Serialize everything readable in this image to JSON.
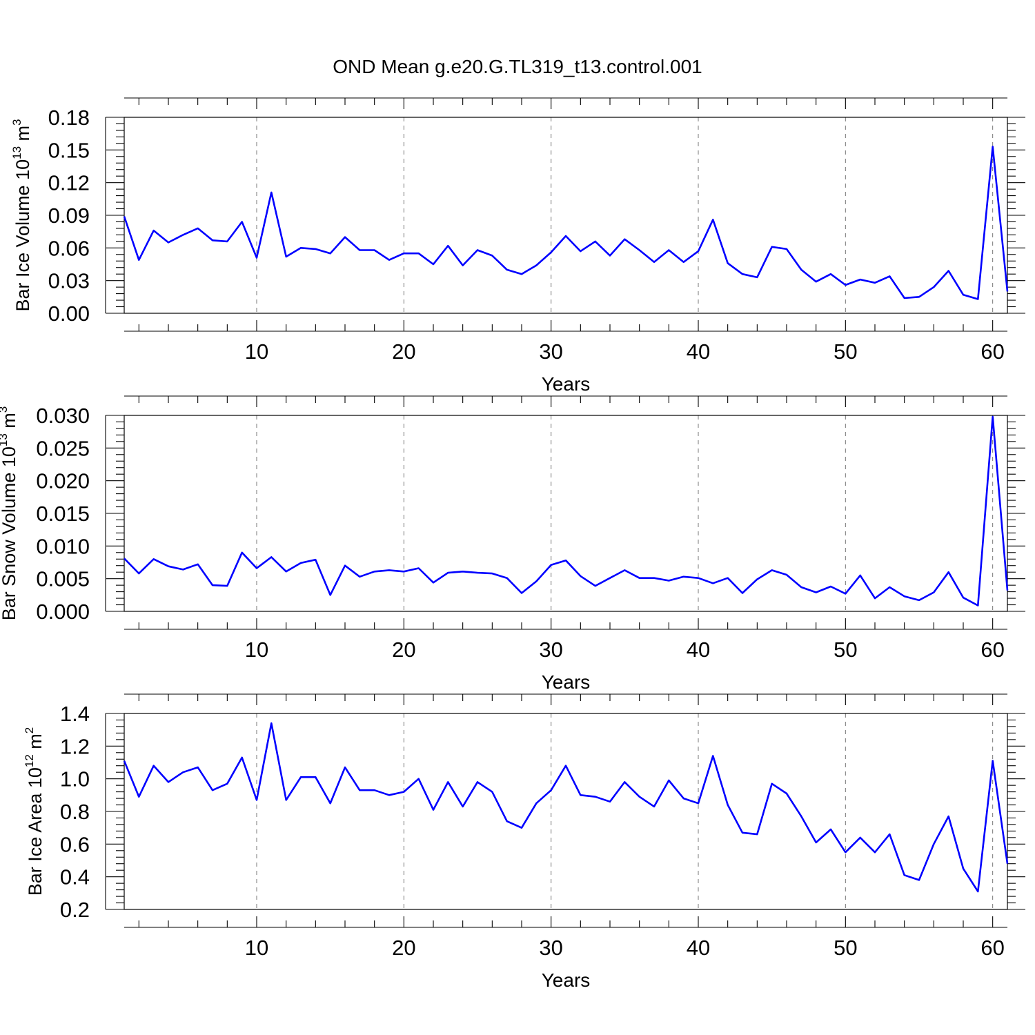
{
  "title": "OND Mean g.e20.G.TL319_t13.control.001",
  "line_color": "#0000ff",
  "chart_data": [
    {
      "type": "line",
      "ylabel_main": "Bar Ice Volume 10",
      "ylabel_exp": "13",
      "ylabel_unit": "m",
      "ylabel_unit_exp": "3",
      "xlabel": "Years",
      "xlim": [
        1,
        61
      ],
      "ylim": [
        0.0,
        0.18
      ],
      "xticks": [
        10,
        20,
        30,
        40,
        50,
        60
      ],
      "xtick_labels": [
        "10",
        "20",
        "30",
        "40",
        "50",
        "60"
      ],
      "yticks": [
        0.0,
        0.03,
        0.06,
        0.09,
        0.12,
        0.15,
        0.18
      ],
      "ytick_labels": [
        "0.00",
        "0.03",
        "0.06",
        "0.09",
        "0.12",
        "0.15",
        "0.18"
      ],
      "yminor_step": 0.006,
      "grid_x": [
        10,
        20,
        30,
        40,
        50,
        60
      ],
      "x": [
        1,
        2,
        3,
        4,
        5,
        6,
        7,
        8,
        9,
        10,
        11,
        12,
        13,
        14,
        15,
        16,
        17,
        18,
        19,
        20,
        21,
        22,
        23,
        24,
        25,
        26,
        27,
        28,
        29,
        30,
        31,
        32,
        33,
        34,
        35,
        36,
        37,
        38,
        39,
        40,
        41,
        42,
        43,
        44,
        45,
        46,
        47,
        48,
        49,
        50,
        51,
        52,
        53,
        54,
        55,
        56,
        57,
        58,
        59,
        60,
        61
      ],
      "values": [
        0.089,
        0.049,
        0.076,
        0.065,
        0.072,
        0.078,
        0.067,
        0.066,
        0.084,
        0.051,
        0.111,
        0.052,
        0.06,
        0.059,
        0.055,
        0.07,
        0.058,
        0.058,
        0.049,
        0.055,
        0.055,
        0.045,
        0.062,
        0.044,
        0.058,
        0.053,
        0.04,
        0.036,
        0.044,
        0.056,
        0.071,
        0.057,
        0.066,
        0.053,
        0.068,
        0.058,
        0.047,
        0.058,
        0.047,
        0.057,
        0.086,
        0.046,
        0.036,
        0.033,
        0.061,
        0.059,
        0.04,
        0.029,
        0.036,
        0.026,
        0.031,
        0.028,
        0.034,
        0.014,
        0.015,
        0.024,
        0.039,
        0.017,
        0.013,
        0.153,
        0.02
      ]
    },
    {
      "type": "line",
      "ylabel_main": "Bar Snow Volume 10",
      "ylabel_exp": "13",
      "ylabel_unit": "m",
      "ylabel_unit_exp": "3",
      "xlabel": "Years",
      "xlim": [
        1,
        61
      ],
      "ylim": [
        0.0,
        0.03
      ],
      "xticks": [
        10,
        20,
        30,
        40,
        50,
        60
      ],
      "xtick_labels": [
        "10",
        "20",
        "30",
        "40",
        "50",
        "60"
      ],
      "yticks": [
        0.0,
        0.005,
        0.01,
        0.015,
        0.02,
        0.025,
        0.03
      ],
      "ytick_labels": [
        "0.000",
        "0.005",
        "0.010",
        "0.015",
        "0.020",
        "0.025",
        "0.030"
      ],
      "yminor_step": 0.001,
      "grid_x": [
        10,
        20,
        30,
        40,
        50,
        60
      ],
      "x": [
        1,
        2,
        3,
        4,
        5,
        6,
        7,
        8,
        9,
        10,
        11,
        12,
        13,
        14,
        15,
        16,
        17,
        18,
        19,
        20,
        21,
        22,
        23,
        24,
        25,
        26,
        27,
        28,
        29,
        30,
        31,
        32,
        33,
        34,
        35,
        36,
        37,
        38,
        39,
        40,
        41,
        42,
        43,
        44,
        45,
        46,
        47,
        48,
        49,
        50,
        51,
        52,
        53,
        54,
        55,
        56,
        57,
        58,
        59,
        60,
        61
      ],
      "values": [
        0.0081,
        0.0058,
        0.008,
        0.0069,
        0.0064,
        0.0072,
        0.004,
        0.0039,
        0.009,
        0.0066,
        0.0083,
        0.0061,
        0.0074,
        0.0079,
        0.0025,
        0.007,
        0.0053,
        0.0061,
        0.0063,
        0.0061,
        0.0066,
        0.0044,
        0.0059,
        0.0061,
        0.0059,
        0.0058,
        0.0051,
        0.0028,
        0.0046,
        0.0071,
        0.0078,
        0.0054,
        0.0039,
        0.0051,
        0.0063,
        0.0051,
        0.0051,
        0.0047,
        0.0053,
        0.0051,
        0.0043,
        0.0051,
        0.0028,
        0.0049,
        0.0063,
        0.0056,
        0.0037,
        0.0029,
        0.0038,
        0.0027,
        0.0055,
        0.002,
        0.0037,
        0.0023,
        0.0017,
        0.0029,
        0.006,
        0.0021,
        0.0009,
        0.0298,
        0.0032
      ]
    },
    {
      "type": "line",
      "ylabel_main": "Bar Ice Area 10",
      "ylabel_exp": "12",
      "ylabel_unit": "m",
      "ylabel_unit_exp": "2",
      "xlabel": "Years",
      "xlim": [
        1,
        61
      ],
      "ylim": [
        0.2,
        1.4
      ],
      "xticks": [
        10,
        20,
        30,
        40,
        50,
        60
      ],
      "xtick_labels": [
        "10",
        "20",
        "30",
        "40",
        "50",
        "60"
      ],
      "yticks": [
        0.2,
        0.4,
        0.6,
        0.8,
        1.0,
        1.2,
        1.4
      ],
      "ytick_labels": [
        "0.2",
        "0.4",
        "0.6",
        "0.8",
        "1.0",
        "1.2",
        "1.4"
      ],
      "yminor_step": 0.04,
      "grid_x": [
        10,
        20,
        30,
        40,
        50,
        60
      ],
      "x": [
        1,
        2,
        3,
        4,
        5,
        6,
        7,
        8,
        9,
        10,
        11,
        12,
        13,
        14,
        15,
        16,
        17,
        18,
        19,
        20,
        21,
        22,
        23,
        24,
        25,
        26,
        27,
        28,
        29,
        30,
        31,
        32,
        33,
        34,
        35,
        36,
        37,
        38,
        39,
        40,
        41,
        42,
        43,
        44,
        45,
        46,
        47,
        48,
        49,
        50,
        51,
        52,
        53,
        54,
        55,
        56,
        57,
        58,
        59,
        60,
        61
      ],
      "values": [
        1.11,
        0.89,
        1.08,
        0.98,
        1.04,
        1.07,
        0.93,
        0.97,
        1.13,
        0.87,
        1.34,
        0.87,
        1.01,
        1.01,
        0.85,
        1.07,
        0.93,
        0.93,
        0.9,
        0.92,
        1.0,
        0.81,
        0.98,
        0.83,
        0.98,
        0.92,
        0.74,
        0.7,
        0.85,
        0.93,
        1.08,
        0.9,
        0.89,
        0.86,
        0.98,
        0.89,
        0.83,
        0.99,
        0.88,
        0.85,
        1.14,
        0.84,
        0.67,
        0.66,
        0.97,
        0.91,
        0.77,
        0.61,
        0.69,
        0.55,
        0.64,
        0.55,
        0.66,
        0.41,
        0.38,
        0.6,
        0.77,
        0.45,
        0.31,
        1.11,
        0.48
      ]
    }
  ]
}
